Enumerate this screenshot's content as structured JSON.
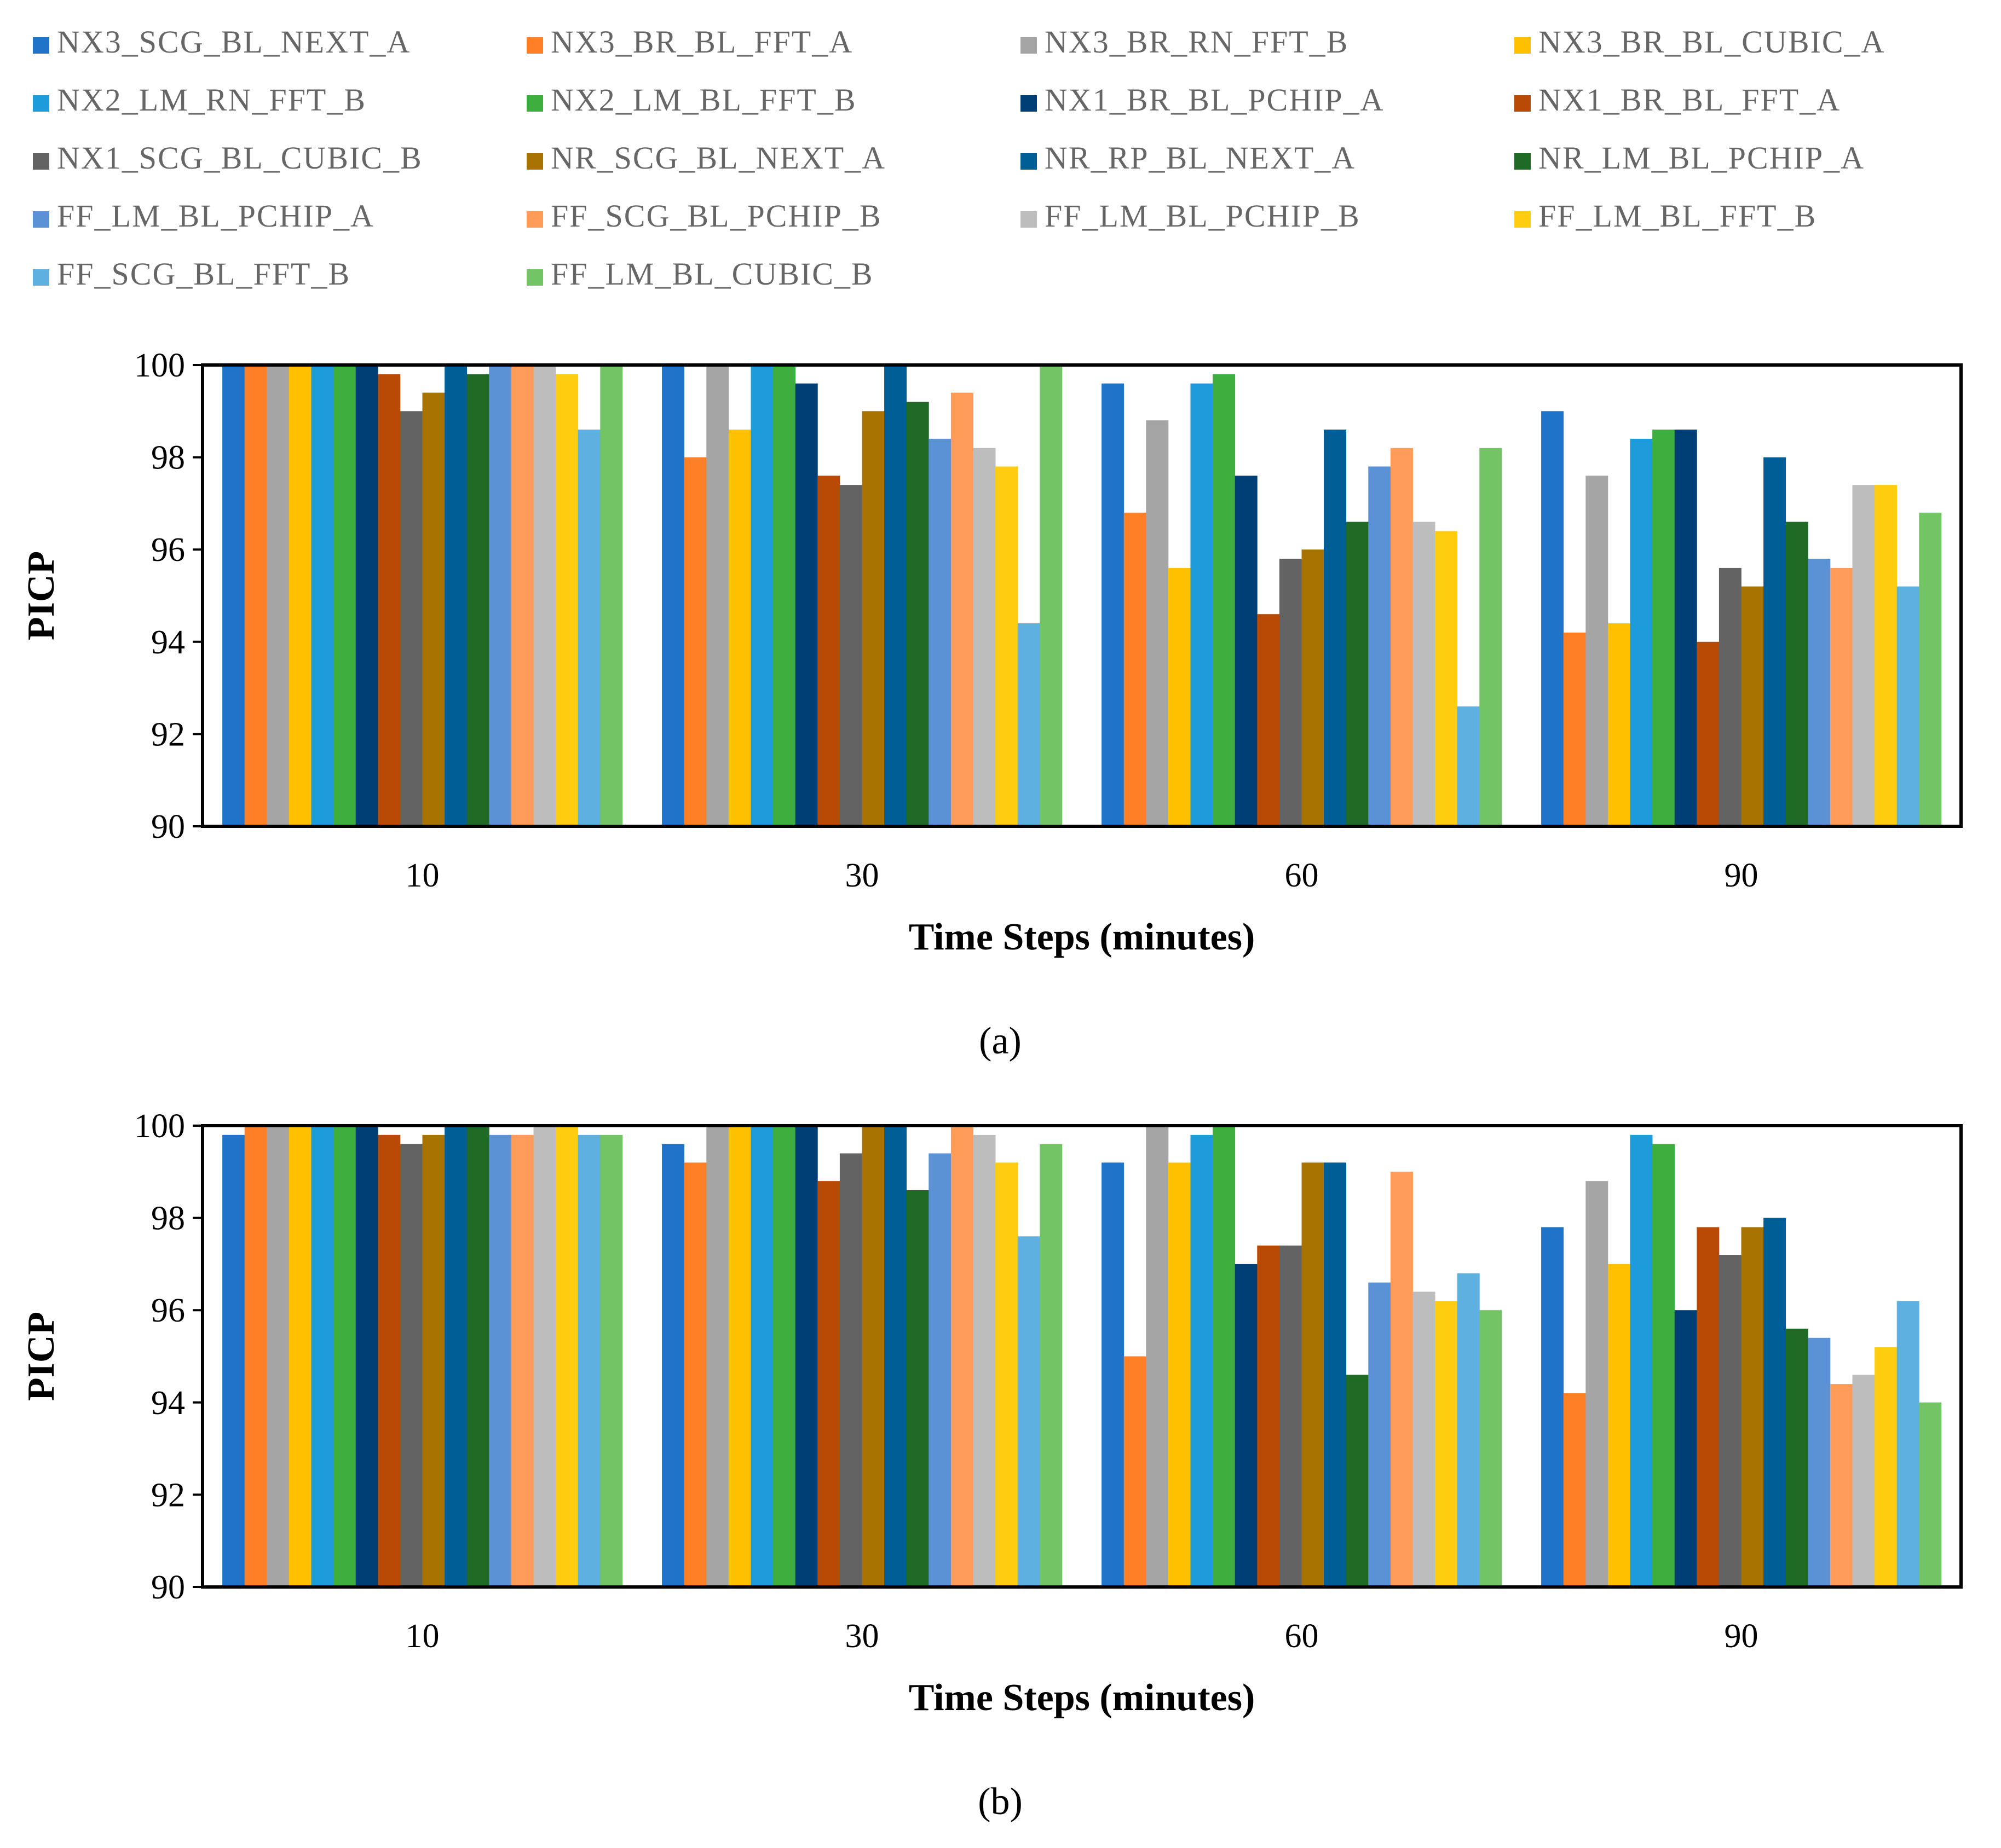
{
  "figure": {
    "title": ""
  },
  "chart_data": [
    {
      "type": "bar",
      "panel_label": "(a)",
      "xlabel": "Time Steps (minutes)",
      "ylabel": "PICP",
      "ylim": [
        90,
        100
      ],
      "yticks": [
        90,
        92,
        94,
        96,
        98,
        100
      ],
      "grid": false,
      "legend_position": "top",
      "categories": [
        "10",
        "30",
        "60",
        "90"
      ],
      "series": [
        {
          "name": "NX3_SCG_BL_NEXT_A",
          "color": "#1F73C8",
          "values": [
            100,
            100,
            99.6,
            99.0
          ]
        },
        {
          "name": "NX3_BR_BL_FFT_A",
          "color": "#FF7F27",
          "values": [
            100,
            98.0,
            96.8,
            94.2
          ]
        },
        {
          "name": "NX3_BR_RN_FFT_B",
          "color": "#A5A5A5",
          "values": [
            100,
            100,
            98.8,
            97.6
          ]
        },
        {
          "name": "NX3_BR_BL_CUBIC_A",
          "color": "#FFC000",
          "values": [
            100,
            98.6,
            95.6,
            94.4
          ]
        },
        {
          "name": "NX2_LM_RN_FFT_B",
          "color": "#1E9BDB",
          "values": [
            100,
            100,
            99.6,
            98.4
          ]
        },
        {
          "name": "NX2_LM_BL_FFT_B",
          "color": "#3EAF3E",
          "values": [
            100,
            100,
            99.8,
            98.6
          ]
        },
        {
          "name": "NX1_BR_BL_PCHIP_A",
          "color": "#003F75",
          "values": [
            100,
            99.6,
            97.6,
            98.6
          ]
        },
        {
          "name": "NX1_BR_BL_FFT_A",
          "color": "#B84A06",
          "values": [
            99.8,
            97.6,
            94.6,
            94.0
          ]
        },
        {
          "name": "NX1_SCG_BL_CUBIC_B",
          "color": "#636363",
          "values": [
            99.0,
            97.4,
            95.8,
            95.6
          ]
        },
        {
          "name": "NR_SCG_BL_NEXT_A",
          "color": "#A87300",
          "values": [
            99.4,
            99.0,
            96.0,
            95.2
          ]
        },
        {
          "name": "NR_RP_BL_NEXT_A",
          "color": "#005E96",
          "values": [
            100,
            100,
            98.6,
            98.0
          ]
        },
        {
          "name": "NR_LM_BL_PCHIP_A",
          "color": "#1F6A24",
          "values": [
            99.8,
            99.2,
            96.6,
            96.6
          ]
        },
        {
          "name": "FF_LM_BL_PCHIP_A",
          "color": "#5B92D6",
          "values": [
            100,
            98.4,
            97.8,
            95.8
          ]
        },
        {
          "name": "FF_SCG_BL_PCHIP_B",
          "color": "#FF9C5A",
          "values": [
            100,
            99.4,
            98.2,
            95.6
          ]
        },
        {
          "name": "FF_LM_BL_PCHIP_B",
          "color": "#BDBDBD",
          "values": [
            100,
            98.2,
            96.6,
            97.4
          ]
        },
        {
          "name": "FF_LM_BL_FFT_B",
          "color": "#FFCD0F",
          "values": [
            99.8,
            97.8,
            96.4,
            97.4
          ]
        },
        {
          "name": "FF_SCG_BL_FFT_B",
          "color": "#5DB0E0",
          "values": [
            98.6,
            94.4,
            92.6,
            95.2
          ]
        },
        {
          "name": "FF_LM_BL_CUBIC_B",
          "color": "#72C465",
          "values": [
            100,
            100,
            98.2,
            96.8
          ]
        }
      ]
    },
    {
      "type": "bar",
      "panel_label": "(b)",
      "xlabel": "Time Steps (minutes)",
      "ylabel": "PICP",
      "ylim": [
        90,
        100
      ],
      "yticks": [
        90,
        92,
        94,
        96,
        98,
        100
      ],
      "grid": false,
      "categories": [
        "10",
        "30",
        "60",
        "90"
      ],
      "series": [
        {
          "name": "NX3_SCG_BL_NEXT_A",
          "color": "#1F73C8",
          "values": [
            99.8,
            99.6,
            99.2,
            97.8
          ]
        },
        {
          "name": "NX3_BR_BL_FFT_A",
          "color": "#FF7F27",
          "values": [
            100,
            99.2,
            95.0,
            94.2
          ]
        },
        {
          "name": "NX3_BR_RN_FFT_B",
          "color": "#A5A5A5",
          "values": [
            100,
            100,
            100,
            98.8
          ]
        },
        {
          "name": "NX3_BR_BL_CUBIC_A",
          "color": "#FFC000",
          "values": [
            100,
            100,
            99.2,
            97.0
          ]
        },
        {
          "name": "NX2_LM_RN_FFT_B",
          "color": "#1E9BDB",
          "values": [
            100,
            100,
            99.8,
            99.8
          ]
        },
        {
          "name": "NX2_LM_BL_FFT_B",
          "color": "#3EAF3E",
          "values": [
            100,
            100,
            100,
            99.6
          ]
        },
        {
          "name": "NX1_BR_BL_PCHIP_A",
          "color": "#003F75",
          "values": [
            100,
            100,
            97.0,
            96.0
          ]
        },
        {
          "name": "NX1_BR_BL_FFT_A",
          "color": "#B84A06",
          "values": [
            99.8,
            98.8,
            97.4,
            97.8
          ]
        },
        {
          "name": "NX1_SCG_BL_CUBIC_B",
          "color": "#636363",
          "values": [
            99.6,
            99.4,
            97.4,
            97.2
          ]
        },
        {
          "name": "NR_SCG_BL_NEXT_A",
          "color": "#A87300",
          "values": [
            99.8,
            100,
            99.2,
            97.8
          ]
        },
        {
          "name": "NR_RP_BL_NEXT_A",
          "color": "#005E96",
          "values": [
            100,
            100,
            99.2,
            98.0
          ]
        },
        {
          "name": "NR_LM_BL_PCHIP_A",
          "color": "#1F6A24",
          "values": [
            100,
            98.6,
            94.6,
            95.6
          ]
        },
        {
          "name": "FF_LM_BL_PCHIP_A",
          "color": "#5B92D6",
          "values": [
            99.8,
            99.4,
            96.6,
            95.4
          ]
        },
        {
          "name": "FF_SCG_BL_PCHIP_B",
          "color": "#FF9C5A",
          "values": [
            99.8,
            100,
            99.0,
            94.4
          ]
        },
        {
          "name": "FF_LM_BL_PCHIP_B",
          "color": "#BDBDBD",
          "values": [
            100,
            99.8,
            96.4,
            94.6
          ]
        },
        {
          "name": "FF_LM_BL_FFT_B",
          "color": "#FFCD0F",
          "values": [
            100,
            99.2,
            96.2,
            95.2
          ]
        },
        {
          "name": "FF_SCG_BL_FFT_B",
          "color": "#5DB0E0",
          "values": [
            99.8,
            97.6,
            96.8,
            96.2
          ]
        },
        {
          "name": "FF_LM_BL_CUBIC_B",
          "color": "#72C465",
          "values": [
            99.8,
            99.6,
            96.0,
            94.0
          ]
        }
      ]
    }
  ]
}
